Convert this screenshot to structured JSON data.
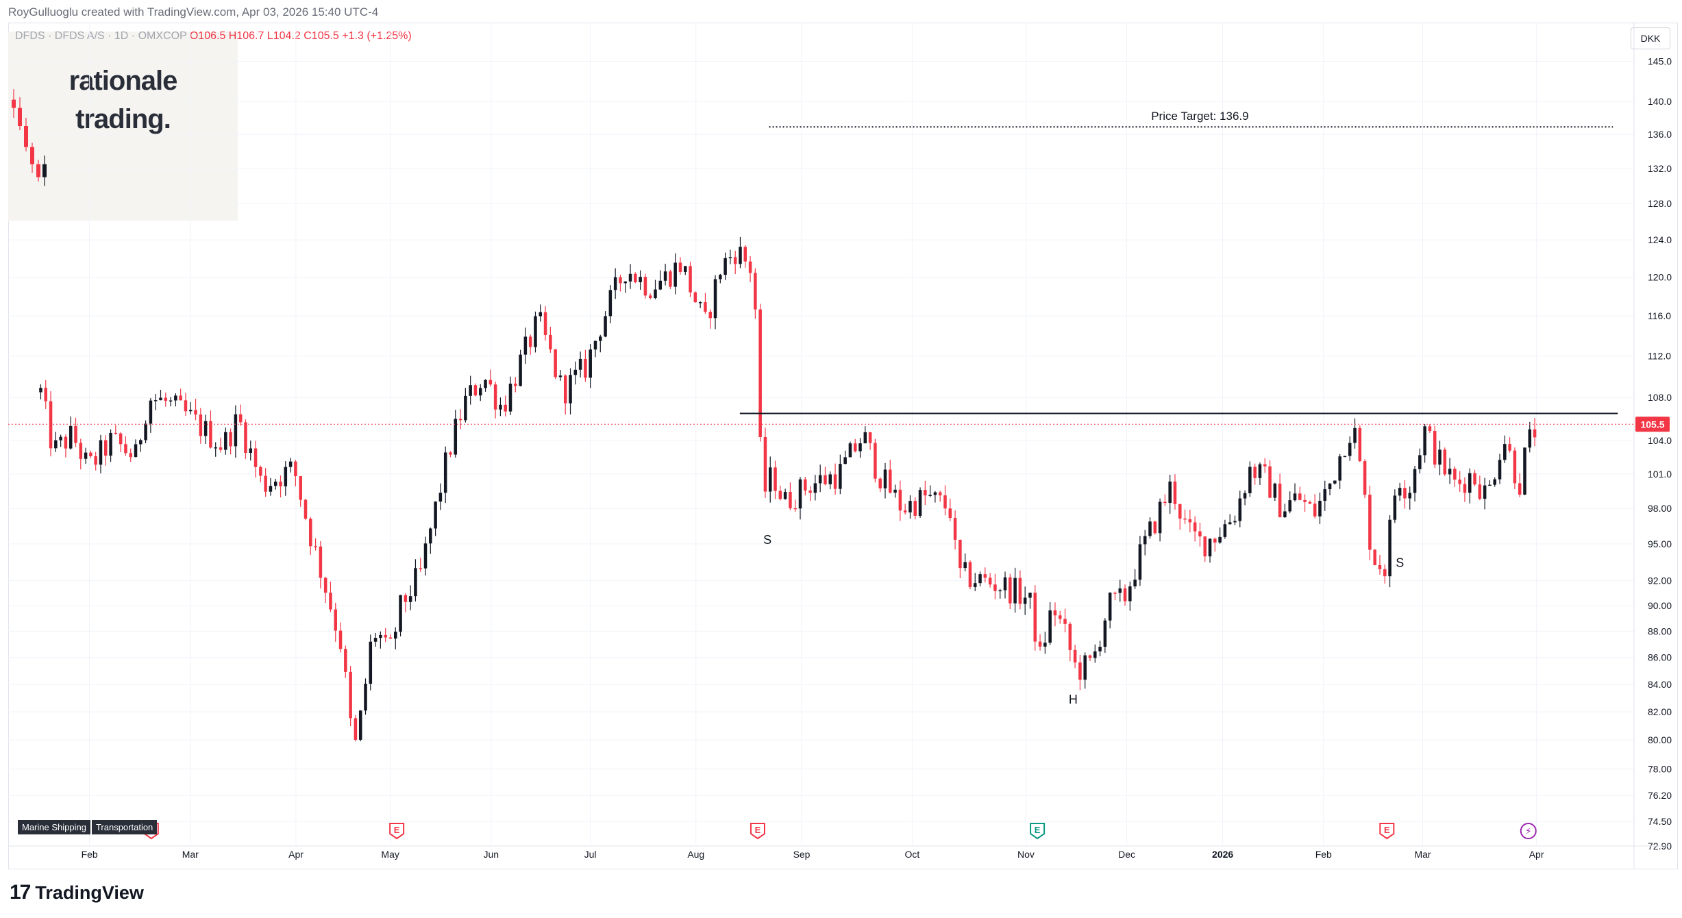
{
  "header": {
    "credit": "RoyGulluoglu created with TradingView.com, Apr 03, 2026 15:40 UTC-4",
    "symbol": "DFDS · DFDS A/S · 1D · OMXCOP",
    "open": "O106.5",
    "high": "H106.7",
    "low": "L104.2",
    "close": "C105.5",
    "change": "+1.3 (+1.25%)"
  },
  "watermark": {
    "line1": "rationale",
    "line2": "trading."
  },
  "currency_button": "DKK",
  "tags": [
    "Marine Shipping",
    "Transportation"
  ],
  "footer_brand": "TradingView",
  "colors": {
    "up": "#131722",
    "down": "#f23645",
    "grid": "#f0f3fa",
    "neckline": "#131722",
    "price_line": "#f23645"
  },
  "icons": [
    "earnings-icon",
    "dividend-icon",
    "flash-icon",
    "tradingview-logo-icon"
  ],
  "chart_data": {
    "type": "candlestick",
    "scale": "log",
    "ylim": [
      72.9,
      150
    ],
    "y_ticks": [
      "145.0",
      "140.0",
      "136.0",
      "132.0",
      "128.0",
      "124.0",
      "120.0",
      "116.0",
      "112.0",
      "108.0",
      "104.0",
      "101.0",
      "98.00",
      "95.00",
      "92.00",
      "90.00",
      "88.00",
      "86.00",
      "84.00",
      "82.00",
      "80.00",
      "78.00",
      "76.20",
      "74.50",
      "72.90"
    ],
    "x_ticks": [
      "Feb",
      "Mar",
      "Apr",
      "May",
      "Jun",
      "Jul",
      "Aug",
      "Sep",
      "Oct",
      "Nov",
      "Dec",
      "2026",
      "Feb",
      "Mar",
      "Apr"
    ],
    "x_tick_pos": [
      0.05,
      0.112,
      0.177,
      0.235,
      0.297,
      0.358,
      0.423,
      0.488,
      0.556,
      0.626,
      0.688,
      0.747,
      0.809,
      0.87,
      0.94
    ],
    "current_price": "105.5",
    "price_target": {
      "label": "Price Target: 136.9",
      "value": 136.9
    },
    "neckline": 106.5,
    "annotations": [
      {
        "text": "S",
        "x": 0.467,
        "y": 95.0
      },
      {
        "text": "H",
        "x": 0.655,
        "y": 82.6
      },
      {
        "text": "S",
        "x": 0.856,
        "y": 93.1
      }
    ],
    "event_markers": [
      {
        "type": "E",
        "x": 0.088
      },
      {
        "type": "E",
        "x": 0.239
      },
      {
        "type": "E",
        "x": 0.461
      },
      {
        "type": "E",
        "x": 0.633,
        "color": "green"
      },
      {
        "type": "E",
        "x": 0.848
      },
      {
        "type": "flash",
        "x": 0.935
      }
    ],
    "prior_candles": [
      {
        "o": 140.2,
        "h": 141.5,
        "l": 138.0,
        "c": 139.2
      },
      {
        "o": 139.2,
        "h": 140.5,
        "l": 136.5,
        "c": 137.0
      },
      {
        "o": 137.0,
        "h": 138.0,
        "l": 134.0,
        "c": 134.5
      },
      {
        "o": 134.5,
        "h": 135.0,
        "l": 131.5,
        "c": 132.5
      },
      {
        "o": 132.5,
        "h": 133.0,
        "l": 130.5,
        "c": 131.0
      },
      {
        "o": 131.0,
        "h": 133.5,
        "l": 130.0,
        "c": 132.5
      }
    ],
    "price_path": [
      [
        0,
        108.5
      ],
      [
        0.008,
        103.0
      ],
      [
        0.02,
        104.5
      ],
      [
        0.03,
        101.5
      ],
      [
        0.045,
        104.0
      ],
      [
        0.06,
        102.5
      ],
      [
        0.068,
        108.0
      ],
      [
        0.08,
        107.5
      ],
      [
        0.095,
        106.0
      ],
      [
        0.115,
        103.5
      ],
      [
        0.125,
        106.0
      ],
      [
        0.14,
        100.0
      ],
      [
        0.16,
        101.5
      ],
      [
        0.17,
        96.0
      ],
      [
        0.18,
        91.5
      ],
      [
        0.19,
        87.0
      ],
      [
        0.198,
        79.0
      ],
      [
        0.203,
        82.0
      ],
      [
        0.21,
        88.0
      ],
      [
        0.215,
        87.5
      ],
      [
        0.22,
        86.0
      ],
      [
        0.228,
        90.0
      ],
      [
        0.24,
        92.5
      ],
      [
        0.248,
        97.0
      ],
      [
        0.258,
        103.0
      ],
      [
        0.268,
        107.5
      ],
      [
        0.28,
        110.0
      ],
      [
        0.292,
        107.0
      ],
      [
        0.305,
        112.0
      ],
      [
        0.315,
        115.5
      ],
      [
        0.33,
        108.5
      ],
      [
        0.345,
        111.0
      ],
      [
        0.355,
        115.5
      ],
      [
        0.37,
        121.0
      ],
      [
        0.385,
        119.0
      ],
      [
        0.395,
        120.0
      ],
      [
        0.405,
        121.5
      ],
      [
        0.42,
        115.0
      ],
      [
        0.43,
        121.0
      ],
      [
        0.44,
        123.0
      ],
      [
        0.451,
        120.5
      ],
      [
        0.456,
        99.0
      ],
      [
        0.463,
        101.0
      ],
      [
        0.47,
        98.5
      ],
      [
        0.485,
        100.0
      ],
      [
        0.505,
        101.0
      ],
      [
        0.52,
        104.5
      ],
      [
        0.53,
        101.0
      ],
      [
        0.545,
        98.0
      ],
      [
        0.56,
        99.0
      ],
      [
        0.575,
        98.0
      ],
      [
        0.58,
        92.5
      ],
      [
        0.595,
        92.0
      ],
      [
        0.61,
        91.5
      ],
      [
        0.625,
        90.5
      ],
      [
        0.632,
        86.0
      ],
      [
        0.64,
        90.0
      ],
      [
        0.647,
        88.0
      ],
      [
        0.655,
        85.0
      ],
      [
        0.665,
        85.5
      ],
      [
        0.675,
        90.0
      ],
      [
        0.685,
        90.5
      ],
      [
        0.695,
        94.0
      ],
      [
        0.705,
        97.0
      ],
      [
        0.715,
        100.0
      ],
      [
        0.725,
        96.0
      ],
      [
        0.735,
        95.0
      ],
      [
        0.745,
        96.0
      ],
      [
        0.755,
        97.5
      ],
      [
        0.765,
        101.5
      ],
      [
        0.775,
        100.5
      ],
      [
        0.785,
        98.0
      ],
      [
        0.795,
        99.0
      ],
      [
        0.805,
        97.5
      ],
      [
        0.815,
        100.0
      ],
      [
        0.825,
        104.0
      ],
      [
        0.83,
        105.5
      ],
      [
        0.835,
        101.0
      ],
      [
        0.842,
        94.0
      ],
      [
        0.85,
        93.0
      ],
      [
        0.858,
        101.0
      ],
      [
        0.865,
        99.5
      ],
      [
        0.875,
        105.0
      ],
      [
        0.885,
        102.0
      ],
      [
        0.895,
        100.0
      ],
      [
        0.905,
        101.0
      ],
      [
        0.915,
        99.0
      ],
      [
        0.925,
        104.5
      ],
      [
        0.935,
        100.0
      ],
      [
        0.94,
        103.5
      ],
      [
        0.945,
        105.0
      ],
      [
        0.948,
        105.5
      ]
    ]
  }
}
